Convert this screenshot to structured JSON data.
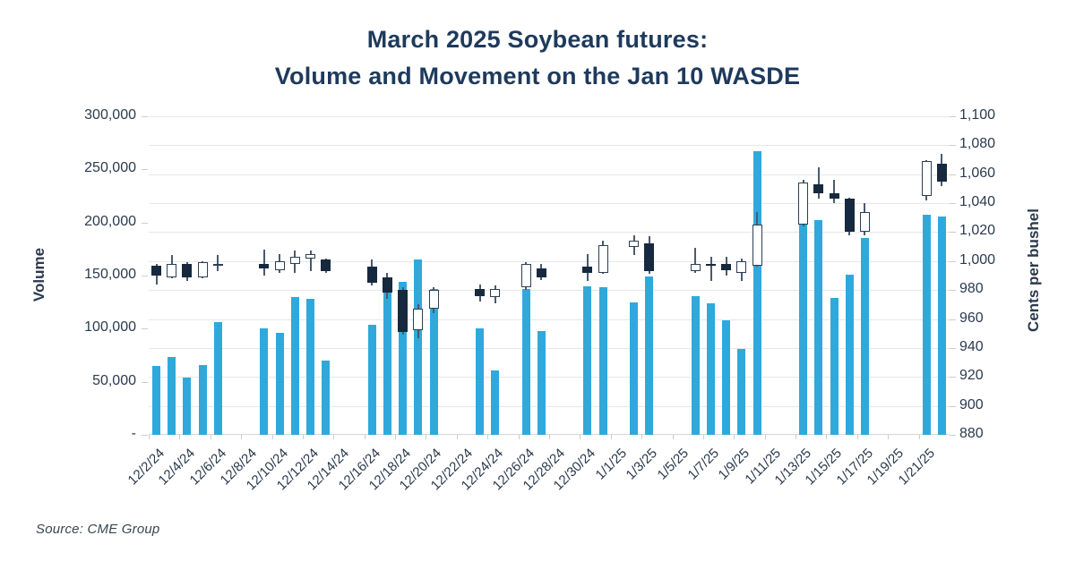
{
  "title": {
    "line1": "March 2025 Soybean futures:",
    "line2": "Volume and Movement on the Jan 10 WASDE"
  },
  "source": "Source: CME Group",
  "chart_data": {
    "type": "bar+candlestick combo (volume bars on left axis, daily OHLC candles on right axis)",
    "title": "March 2025 Soybean futures: Volume and Movement on the Jan 10 WASDE",
    "grid": "horizontal gridlines every 20 cents (880 to 1,100)",
    "layout": {
      "total_day_slots": 52,
      "first_slot_date": "12/2/24",
      "weekends_and_holidays_empty": true
    },
    "colors": {
      "volume_bar": "#2fa9dc",
      "candle_down_fill": "#16293e",
      "candle_up_fill": "#ffffff",
      "candle_border": "#2d3f55",
      "wick": "#4a5a6e",
      "gridline": "#e7e7e7",
      "axis_text": "#2b3a4d",
      "title_text": "#1e3a5c"
    },
    "left_axis": {
      "title": "Volume",
      "min": 0,
      "max": 300000,
      "ticks": [
        {
          "label": "300,000",
          "value": 300000
        },
        {
          "label": "250,000",
          "value": 250000
        },
        {
          "label": "200,000",
          "value": 200000
        },
        {
          "label": "150,000",
          "value": 150000
        },
        {
          "label": "100,000",
          "value": 100000
        },
        {
          "label": "50,000",
          "value": 50000
        },
        {
          "label": "-",
          "value": 0
        }
      ]
    },
    "right_axis": {
      "title": "Cents per bushel",
      "min": 880,
      "max": 1100,
      "ticks": [
        {
          "label": "1,100",
          "value": 1100
        },
        {
          "label": "1,080",
          "value": 1080
        },
        {
          "label": "1,060",
          "value": 1060
        },
        {
          "label": "1,040",
          "value": 1040
        },
        {
          "label": "1,020",
          "value": 1020
        },
        {
          "label": "1,000",
          "value": 1000
        },
        {
          "label": "980",
          "value": 980
        },
        {
          "label": "960",
          "value": 960
        },
        {
          "label": "940",
          "value": 940
        },
        {
          "label": "920",
          "value": 920
        },
        {
          "label": "900",
          "value": 900
        },
        {
          "label": "880",
          "value": 880
        }
      ]
    },
    "x_axis_tick_labels": [
      {
        "label": "12/2/24",
        "slot": 0
      },
      {
        "label": "12/4/24",
        "slot": 2
      },
      {
        "label": "12/6/24",
        "slot": 4
      },
      {
        "label": "12/8/24",
        "slot": 6
      },
      {
        "label": "12/10/24",
        "slot": 8
      },
      {
        "label": "12/12/24",
        "slot": 10
      },
      {
        "label": "12/14/24",
        "slot": 12
      },
      {
        "label": "12/16/24",
        "slot": 14
      },
      {
        "label": "12/18/24",
        "slot": 16
      },
      {
        "label": "12/20/24",
        "slot": 18
      },
      {
        "label": "12/22/24",
        "slot": 20
      },
      {
        "label": "12/24/24",
        "slot": 22
      },
      {
        "label": "12/26/24",
        "slot": 24
      },
      {
        "label": "12/28/24",
        "slot": 26
      },
      {
        "label": "12/30/24",
        "slot": 28
      },
      {
        "label": "1/1/25",
        "slot": 30
      },
      {
        "label": "1/3/25",
        "slot": 32
      },
      {
        "label": "1/5/25",
        "slot": 34
      },
      {
        "label": "1/7/25",
        "slot": 36
      },
      {
        "label": "1/9/25",
        "slot": 38
      },
      {
        "label": "1/11/25",
        "slot": 40
      },
      {
        "label": "1/13/25",
        "slot": 42
      },
      {
        "label": "1/15/25",
        "slot": 44
      },
      {
        "label": "1/17/25",
        "slot": 46
      },
      {
        "label": "1/19/25",
        "slot": 48
      },
      {
        "label": "1/21/25",
        "slot": 50
      }
    ],
    "days": [
      {
        "date": "12/2/24",
        "slot": 0,
        "volume": 65000,
        "open": 997,
        "high": 998,
        "low": 984,
        "close": 990
      },
      {
        "date": "12/3/24",
        "slot": 1,
        "volume": 73000,
        "open": 989,
        "high": 1004,
        "low": 988,
        "close": 998
      },
      {
        "date": "12/4/24",
        "slot": 2,
        "volume": 54000,
        "open": 998,
        "high": 999,
        "low": 986,
        "close": 989
      },
      {
        "date": "12/5/24",
        "slot": 3,
        "volume": 66000,
        "open": 989,
        "high": 1000,
        "low": 988,
        "close": 999
      },
      {
        "date": "12/6/24",
        "slot": 4,
        "volume": 106000,
        "open": 998,
        "high": 1004,
        "low": 993,
        "close": 998
      },
      {
        "date": "12/9/24",
        "slot": 7,
        "volume": 100000,
        "open": 998,
        "high": 1008,
        "low": 990,
        "close": 995
      },
      {
        "date": "12/10/24",
        "slot": 8,
        "volume": 96000,
        "open": 994,
        "high": 1005,
        "low": 992,
        "close": 1000
      },
      {
        "date": "12/11/24",
        "slot": 9,
        "volume": 130000,
        "open": 998,
        "high": 1007,
        "low": 992,
        "close": 1003
      },
      {
        "date": "12/12/24",
        "slot": 10,
        "volume": 128000,
        "open": 1002,
        "high": 1007,
        "low": 993,
        "close": 1005
      },
      {
        "date": "12/13/24",
        "slot": 11,
        "volume": 70000,
        "open": 1001,
        "high": 1002,
        "low": 992,
        "close": 993
      },
      {
        "date": "12/16/24",
        "slot": 14,
        "volume": 104000,
        "open": 996,
        "high": 1001,
        "low": 983,
        "close": 985
      },
      {
        "date": "12/17/24",
        "slot": 15,
        "volume": 146000,
        "open": 989,
        "high": 992,
        "low": 974,
        "close": 978
      },
      {
        "date": "12/18/24",
        "slot": 16,
        "volume": 144000,
        "open": 980,
        "high": 982,
        "low": 949,
        "close": 951
      },
      {
        "date": "12/19/24",
        "slot": 17,
        "volume": 165000,
        "open": 952,
        "high": 970,
        "low": 947,
        "close": 967
      },
      {
        "date": "12/20/24",
        "slot": 18,
        "volume": 137000,
        "open": 967,
        "high": 982,
        "low": 964,
        "close": 980
      },
      {
        "date": "12/23/24",
        "slot": 21,
        "volume": 100000,
        "open": 981,
        "high": 984,
        "low": 972,
        "close": 976
      },
      {
        "date": "12/24/24",
        "slot": 22,
        "volume": 61000,
        "open": 975,
        "high": 983,
        "low": 971,
        "close": 981
      },
      {
        "date": "12/26/24",
        "slot": 24,
        "volume": 137000,
        "open": 982,
        "high": 999,
        "low": 980,
        "close": 998
      },
      {
        "date": "12/27/24",
        "slot": 25,
        "volume": 98000,
        "open": 995,
        "high": 998,
        "low": 987,
        "close": 989
      },
      {
        "date": "12/30/24",
        "slot": 28,
        "volume": 140000,
        "open": 996,
        "high": 1005,
        "low": 986,
        "close": 992
      },
      {
        "date": "12/31/24",
        "slot": 29,
        "volume": 139000,
        "open": 992,
        "high": 1014,
        "low": 991,
        "close": 1011
      },
      {
        "date": "1/2/25",
        "slot": 31,
        "volume": 125000,
        "open": 1010,
        "high": 1018,
        "low": 1004,
        "close": 1014
      },
      {
        "date": "1/3/25",
        "slot": 32,
        "volume": 149000,
        "open": 1012,
        "high": 1017,
        "low": 991,
        "close": 993
      },
      {
        "date": "1/6/25",
        "slot": 35,
        "volume": 131000,
        "open": 993,
        "high": 1009,
        "low": 992,
        "close": 998
      },
      {
        "date": "1/7/25",
        "slot": 36,
        "volume": 124000,
        "open": 998,
        "high": 1003,
        "low": 986,
        "close": 997
      },
      {
        "date": "1/8/25",
        "slot": 37,
        "volume": 108000,
        "open": 998,
        "high": 1003,
        "low": 990,
        "close": 994
      },
      {
        "date": "1/9/25",
        "slot": 38,
        "volume": 81000,
        "open": 992,
        "high": 1002,
        "low": 986,
        "close": 1000
      },
      {
        "date": "1/10/25",
        "slot": 39,
        "volume": 267000,
        "open": 997,
        "high": 1034,
        "low": 996,
        "close": 1025
      },
      {
        "date": "1/13/25",
        "slot": 42,
        "volume": 198000,
        "open": 1025,
        "high": 1056,
        "low": 1024,
        "close": 1054
      },
      {
        "date": "1/14/25",
        "slot": 43,
        "volume": 202000,
        "open": 1053,
        "high": 1065,
        "low": 1043,
        "close": 1047
      },
      {
        "date": "1/15/25",
        "slot": 44,
        "volume": 129000,
        "open": 1047,
        "high": 1056,
        "low": 1040,
        "close": 1043
      },
      {
        "date": "1/16/25",
        "slot": 45,
        "volume": 151000,
        "open": 1043,
        "high": 1044,
        "low": 1018,
        "close": 1020
      },
      {
        "date": "1/17/25",
        "slot": 46,
        "volume": 185000,
        "open": 1020,
        "high": 1040,
        "low": 1018,
        "close": 1034
      },
      {
        "date": "1/21/25",
        "slot": 50,
        "volume": 207000,
        "open": 1045,
        "high": 1070,
        "low": 1042,
        "close": 1069
      },
      {
        "date": "1/22/25",
        "slot": 51,
        "volume": 206000,
        "open": 1067,
        "high": 1074,
        "low": 1052,
        "close": 1055
      }
    ]
  }
}
